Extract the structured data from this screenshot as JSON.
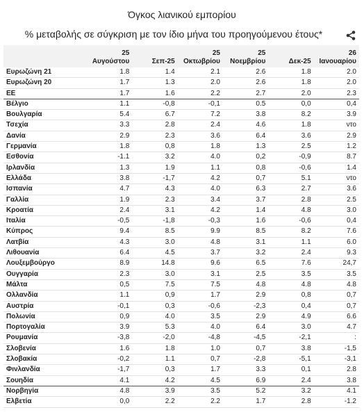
{
  "header": {
    "title": "Όγκος λιανικού εμπορίου",
    "subtitle": "% μεταβολής σε σύγκριση με τον ίδιο μήνα του προηγούμενου έτους*"
  },
  "table": {
    "columns": [
      [],
      [
        "25",
        "Αυγούστου"
      ],
      [
        "Σεπ-25"
      ],
      [
        "25",
        "Οκτωβρίου"
      ],
      [
        "25",
        "Νοεμβρίου"
      ],
      [
        "Δεκ-25"
      ],
      [
        "26",
        "Ιανουαρίου"
      ]
    ],
    "rows": [
      [
        "Ευρωζώνη 21",
        "1.8",
        "1.4",
        "2.1",
        "2.6",
        "1.8",
        "2.0"
      ],
      [
        "Ευρωζώνη 20",
        "1.7",
        "1.3",
        "2.0",
        "2.6",
        "1.8",
        "2.0"
      ],
      [
        "ΕΕ",
        "1.7",
        "1.6",
        "2.2",
        "2.7",
        "2.0",
        "2.3"
      ],
      [
        "Βέλγιο",
        "1.1",
        "-0,8",
        "-0,1",
        "0.5",
        "0,0",
        "0,4"
      ],
      [
        "Βουλγαρία",
        "5.4",
        "6.7",
        "7.2",
        "3.8",
        "8.2",
        "3.9"
      ],
      [
        "Τσεχία",
        "3.3",
        "2.8",
        "2.4",
        "4.6",
        "1.8",
        "ντο"
      ],
      [
        "Δανία",
        "2.9",
        "2.3",
        "3.6",
        "6.4",
        "3.6",
        "2.9"
      ],
      [
        "Γερμανία",
        "1.8",
        "0,8",
        "1.8",
        "1.3",
        "2.5",
        "1.2"
      ],
      [
        "Εσθονία",
        "-1.1",
        "3.2",
        "4.0",
        "0,2",
        "-0,9",
        "8.7"
      ],
      [
        "Ιρλανδία",
        "1.3",
        "1.9",
        "1.1",
        "0,8",
        "-0,6",
        "1.4"
      ],
      [
        "Ελλάδα",
        "3.8",
        "-1,7",
        "4.2",
        "0,7",
        "5.1",
        "ντο"
      ],
      [
        "Ισπανία",
        "4.7",
        "4.3",
        "4.0",
        "6.3",
        "2.7",
        "3.6"
      ],
      [
        "Γαλλία",
        "1.9",
        "2.3",
        "3.4",
        "3.7",
        "2.8",
        "2.5"
      ],
      [
        "Κροατία",
        "2.4",
        "3.1",
        "4.2",
        "1.4",
        "4.8",
        "3.0"
      ],
      [
        "Ιταλία",
        "-0,5",
        "-1,8",
        "-0,3",
        "1.6",
        "-0,6",
        "0,4"
      ],
      [
        "Κύπρος",
        "9.4",
        "8.5",
        "9.9",
        "8.5",
        "8.2",
        "7.6"
      ],
      [
        "Λατβία",
        "4.3",
        "3.0",
        "4.8",
        "3.1",
        "1.1",
        "6.0"
      ],
      [
        "Λιθουανία",
        "6.4",
        "4.5",
        "3.7",
        "3.2",
        "2.4",
        "9.3"
      ],
      [
        "Λουξεμβούργο",
        "8.9",
        "14.8",
        "9.6",
        "6.5",
        "7.6",
        "24,7"
      ],
      [
        "Ουγγαρία",
        "2.3",
        "3.0",
        "3.1",
        "2.5",
        "3.5",
        "3.5"
      ],
      [
        "Μάλτα",
        "0,5",
        "7.5",
        "7.5",
        "4.8",
        "4.8",
        "4.8"
      ],
      [
        "Ολλανδία",
        "1.1",
        "0,9",
        "1.7",
        "2.9",
        "0,8",
        "0,7"
      ],
      [
        "Αυστρία",
        "-0,1",
        "0,3",
        "-0,6",
        "-2,3",
        "0,4",
        "0,7"
      ],
      [
        "Πολωνία",
        "0,9",
        "4.0",
        "3.5",
        "2.9",
        "4.9",
        "6.6"
      ],
      [
        "Πορτογαλία",
        "3.9",
        "5.3",
        "4.0",
        "6.4",
        "3.0",
        "4.7"
      ],
      [
        "Ρουμανία",
        "-3,8",
        "-2,0",
        "-4,8",
        "-4,5",
        "-2,1",
        ":"
      ],
      [
        "Σλοβενία",
        "1.6",
        "1.8",
        "1.0",
        "0,7",
        "3.8",
        "-1,5"
      ],
      [
        "Σλοβακία",
        "-0,2",
        "1.1",
        "0,7",
        "-2,8",
        "-5,1",
        "-3,1"
      ],
      [
        "Φινλανδία",
        "-1,7",
        "0,3",
        "1.7",
        "3.3",
        "0,1",
        "2.8"
      ],
      [
        "Σουηδία",
        "4.1",
        "4.2",
        "4.5",
        "6.9",
        "2.4",
        "3.8"
      ],
      [
        "Νορβηγία",
        "4.8",
        "3.9",
        "3.5",
        "5.2",
        "3.2",
        "4.1"
      ],
      [
        "Ελβετία",
        "0,0",
        "2.2",
        "2.2",
        "1.7",
        "2.8",
        "-1.2"
      ]
    ]
  }
}
